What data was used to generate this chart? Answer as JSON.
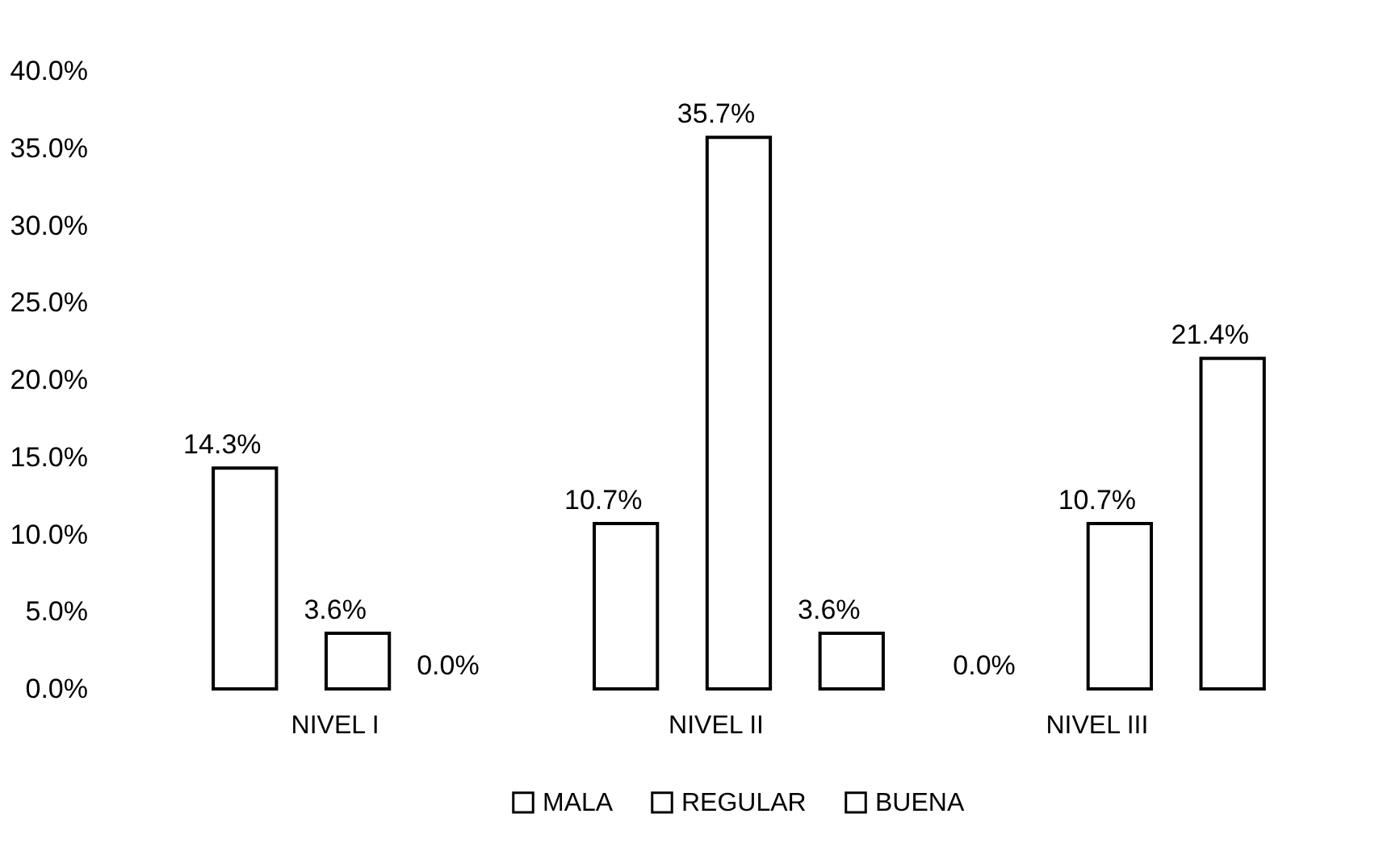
{
  "chart_data": {
    "type": "bar",
    "categories": [
      "NIVEL I",
      "NIVEL II",
      "NIVEL III"
    ],
    "series": [
      {
        "name": "MALA",
        "color": "#ffffff",
        "values": [
          14.3,
          10.7,
          0.0
        ],
        "value_labels": [
          "14.3%",
          "10.7%",
          "0.0%"
        ]
      },
      {
        "name": "REGULAR",
        "color": "#ffffff",
        "values": [
          3.6,
          35.7,
          10.7
        ],
        "value_labels": [
          "3.6%",
          "35.7%",
          "10.7%"
        ]
      },
      {
        "name": "BUENA",
        "color": "#ffffff",
        "values": [
          0.0,
          3.6,
          21.4
        ],
        "value_labels": [
          "0.0%",
          "3.6%",
          "21.4%"
        ]
      }
    ],
    "ylim": [
      0,
      40
    ],
    "yticks": [
      {
        "value": 0,
        "label": "0.0%"
      },
      {
        "value": 5,
        "label": "5.0%"
      },
      {
        "value": 10,
        "label": "10.0%"
      },
      {
        "value": 15,
        "label": "15.0%"
      },
      {
        "value": 20,
        "label": "20.0%"
      },
      {
        "value": 25,
        "label": "25.0%"
      },
      {
        "value": 30,
        "label": "30.0%"
      },
      {
        "value": 35,
        "label": "35.0%"
      },
      {
        "value": 40,
        "label": "40.0%"
      }
    ],
    "grid": false,
    "legend": "bottom"
  }
}
